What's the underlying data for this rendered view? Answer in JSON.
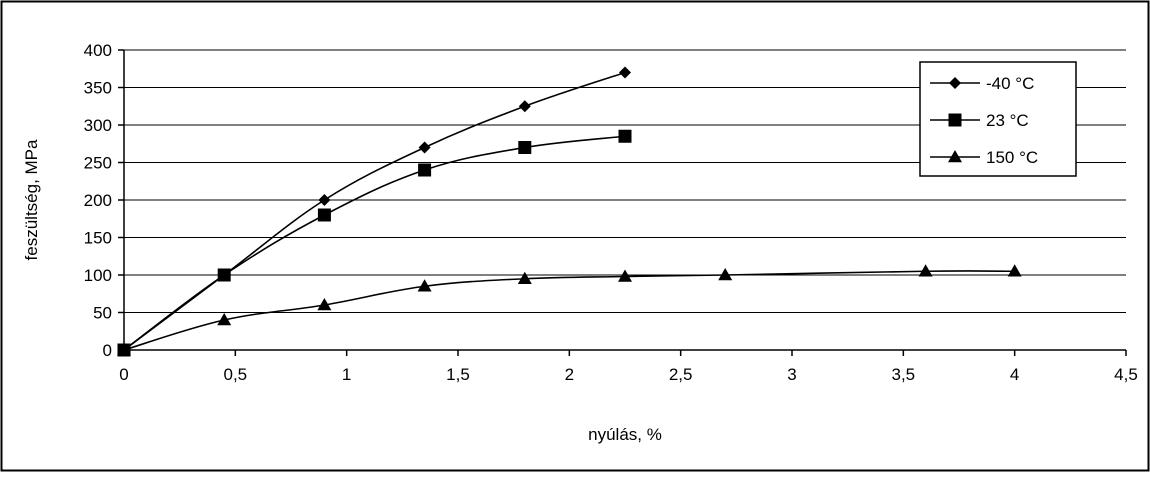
{
  "chart_data": {
    "type": "line",
    "title": "",
    "xlabel": "nyúlás, %",
    "ylabel": "feszültség, MPa",
    "xlim": [
      0,
      4.5
    ],
    "ylim": [
      0,
      400
    ],
    "x_ticks": [
      0,
      0.5,
      1,
      1.5,
      2,
      2.5,
      3,
      3.5,
      4,
      4.5
    ],
    "x_tick_labels": [
      "0",
      "0,5",
      "1",
      "1,5",
      "2",
      "2,5",
      "3",
      "3,5",
      "4",
      "4,5"
    ],
    "y_ticks": [
      0,
      50,
      100,
      150,
      200,
      250,
      300,
      350,
      400
    ],
    "y_tick_labels": [
      "0",
      "50",
      "100",
      "150",
      "200",
      "250",
      "300",
      "350",
      "400"
    ],
    "grid": "horizontal",
    "legend_position": "top-right",
    "series": [
      {
        "name": "-40 °C",
        "marker": "diamond",
        "x": [
          0,
          0.45,
          0.9,
          1.35,
          1.8,
          2.25
        ],
        "y": [
          0,
          100,
          200,
          270,
          325,
          370
        ]
      },
      {
        "name": "23 °C",
        "marker": "square",
        "x": [
          0,
          0.45,
          0.9,
          1.35,
          1.8,
          2.25
        ],
        "y": [
          0,
          100,
          180,
          240,
          270,
          285
        ]
      },
      {
        "name": "150 °C",
        "marker": "triangle",
        "x": [
          0,
          0.45,
          0.9,
          1.35,
          1.8,
          2.25,
          2.7,
          3.6,
          4.0
        ],
        "y": [
          0,
          40,
          60,
          85,
          95,
          98,
          100,
          105,
          105
        ]
      }
    ]
  },
  "colors": {
    "line": "#000000",
    "grid": "#000000",
    "frame": "#000000",
    "background": "#ffffff"
  }
}
